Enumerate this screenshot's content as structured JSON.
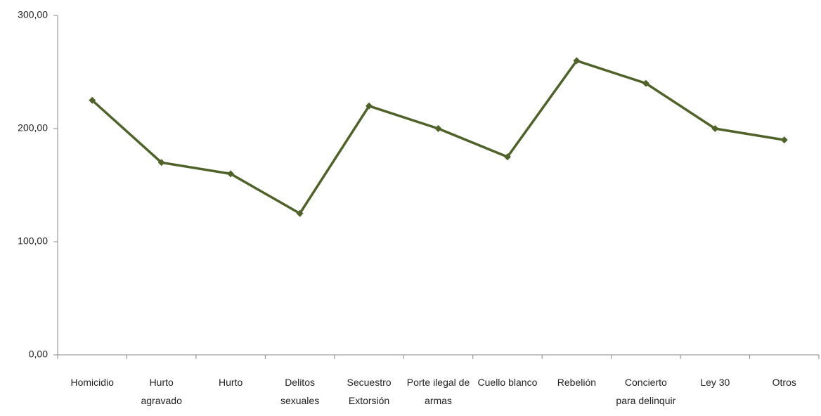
{
  "chart_data": {
    "type": "line",
    "categories": [
      "Homicidio",
      "Hurto agravado",
      "Hurto",
      "Delitos sexuales",
      "Secuestro Extorsión",
      "Porte ilegal de armas",
      "Cuello blanco",
      "Rebelión",
      "Concierto para delinquir",
      "Ley 30",
      "Otros"
    ],
    "series": [
      {
        "name": null,
        "color": "#4f6228",
        "values": [
          225,
          170,
          160,
          125,
          220,
          200,
          175,
          260,
          240,
          200,
          190
        ]
      }
    ],
    "ylim": [
      0,
      300
    ],
    "yticks": [
      {
        "value": 0,
        "label": "0,00"
      },
      {
        "value": 100,
        "label": "100,00"
      },
      {
        "value": 200,
        "label": "200,00"
      },
      {
        "value": 300,
        "label": "300,00"
      }
    ],
    "grid": false
  }
}
